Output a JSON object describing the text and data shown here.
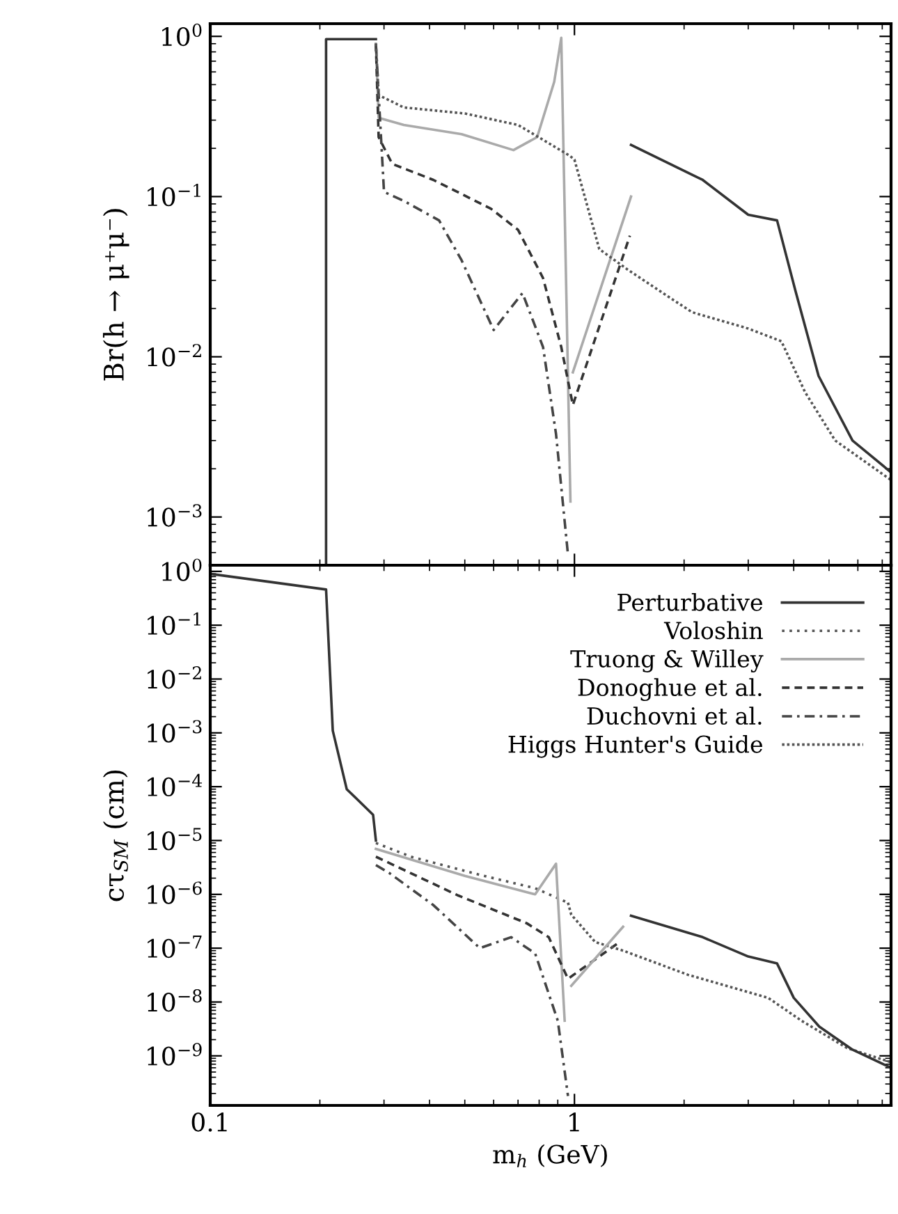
{
  "chart_data": [
    {
      "type": "line",
      "ylabel": "Br(h → μ⁺μ⁻)",
      "log": "xy",
      "grid": false,
      "tick_labels": "y",
      "xlim": [
        0.1,
        7.4
      ],
      "xticks": [
        0.1,
        1
      ],
      "ylim": [
        0.0005,
        1.2
      ],
      "yticks": [
        {
          "value": 1,
          "label": "10$^{0}$"
        },
        {
          "value": 0.1,
          "label": "10$^{−1}$"
        },
        {
          "value": 0.01,
          "label": "10$^{−2}$"
        },
        {
          "value": 0.001,
          "label": "10$^{−3}$"
        }
      ],
      "series": [
        {
          "color": "#333333",
          "line_style": "solid",
          "x": [
            0.208,
            0.208,
            0.285
          ],
          "values": [
            0.0005,
            0.96,
            0.96
          ]
        },
        {
          "color": "#333333",
          "line_style": "solid",
          "x": [
            1.43,
            2.25,
            3.0,
            3.6,
            4.04,
            4.68,
            5.8,
            7.4
          ],
          "values": [
            0.21,
            0.127,
            0.077,
            0.071,
            0.026,
            0.0076,
            0.003,
            0.0019
          ]
        },
        {
          "color": "#aaaaaa",
          "line_style": "solid",
          "x": [
            0.285,
            0.29,
            0.34,
            0.49,
            0.68,
            0.79,
            0.88,
            0.92,
            0.975
          ],
          "values": [
            0.9,
            0.31,
            0.28,
            0.245,
            0.195,
            0.235,
            0.52,
            0.98,
            0.00125
          ]
        },
        {
          "color": "#aaaaaa",
          "line_style": "solid",
          "x": [
            0.99,
            1.43
          ],
          "values": [
            0.008,
            0.1
          ]
        },
        {
          "color": "#333333",
          "line_style": "dashed",
          "x": [
            0.285,
            0.29,
            0.316,
            0.41,
            0.59,
            0.7,
            0.82,
            0.92,
            0.99,
            1.42
          ],
          "values": [
            0.9,
            0.235,
            0.16,
            0.127,
            0.084,
            0.062,
            0.031,
            0.0115,
            0.005,
            0.057
          ]
        },
        {
          "color": "#444444",
          "line_style": "dashdot",
          "x": [
            0.285,
            0.3,
            0.34,
            0.425,
            0.49,
            0.6,
            0.72,
            0.82,
            0.89,
            0.96
          ],
          "values": [
            0.9,
            0.107,
            0.094,
            0.071,
            0.04,
            0.0147,
            0.025,
            0.0115,
            0.0033,
            0.00058
          ]
        },
        {
          "color": "#555555",
          "line_style": "densely dotted",
          "x": [
            0.285,
            0.29,
            0.34,
            0.5,
            0.7,
            0.97,
            1.0,
            1.17,
            1.4,
            2.1,
            3.0,
            3.7,
            4.3,
            5.2,
            7.4
          ],
          "values": [
            0.9,
            0.43,
            0.36,
            0.33,
            0.28,
            0.18,
            0.17,
            0.047,
            0.035,
            0.019,
            0.015,
            0.0125,
            0.006,
            0.003,
            0.0017
          ]
        }
      ]
    },
    {
      "type": "line",
      "xlabel": "m$_{h}$ (GeV)",
      "ylabel": "cτ$_{SM}$ (cm)",
      "log": "xy",
      "grid": false,
      "legend": "top right",
      "xlim": [
        0.1,
        7.4
      ],
      "xticks": [
        0.1,
        1
      ],
      "ylim": [
        1.2e-10,
        1.3
      ],
      "yticks": [
        {
          "value": 1,
          "label": "10$^{0}$"
        },
        {
          "value": 0.1,
          "label": "10$^{−1}$"
        },
        {
          "value": 0.01,
          "label": "10$^{−2}$"
        },
        {
          "value": 0.001,
          "label": "10$^{−3}$"
        },
        {
          "value": 0.0001,
          "label": "10$^{−4}$"
        },
        {
          "value": 1e-05,
          "label": "10$^{−5}$"
        },
        {
          "value": 1e-06,
          "label": "10$^{−6}$"
        },
        {
          "value": 1e-07,
          "label": "10$^{−7}$"
        },
        {
          "value": 1e-08,
          "label": "10$^{−8}$"
        },
        {
          "value": 1e-09,
          "label": "10$^{−9}$"
        }
      ],
      "series": [
        {
          "name": "Perturbative",
          "color": "#333333",
          "line_style": "solid",
          "x": [
            0.1,
            0.208,
            0.217,
            0.237,
            0.28,
            0.285
          ],
          "values": [
            0.9,
            0.46,
            0.0011,
            9e-05,
            3e-05,
            1e-05
          ]
        },
        {
          "name": "Voloshin",
          "color": "#555555",
          "line_style": "dotted",
          "x": [
            0.285,
            0.356,
            0.55,
            0.78,
            0.96
          ],
          "values": [
            9e-06,
            5e-06,
            2.3e-06,
            1.3e-06,
            7e-07
          ]
        },
        {
          "name": "Truong & Willey",
          "color": "#aaaaaa",
          "line_style": "solid",
          "x": [
            0.285,
            0.5,
            0.78,
            0.89,
            0.94
          ],
          "values": [
            7e-06,
            2.2e-06,
            1e-06,
            3.7e-06,
            4.5e-09
          ]
        },
        {
          "name": "Donoghue et al.",
          "color": "#333333",
          "line_style": "dashed",
          "x": [
            0.285,
            0.48,
            0.74,
            0.85,
            0.96,
            1.33
          ],
          "values": [
            5e-06,
            9.5e-07,
            2.9e-07,
            1.6e-07,
            2.7e-08,
            1.3e-07
          ]
        },
        {
          "name": "Duchovni et al.",
          "color": "#444444",
          "line_style": "dashdot",
          "x": [
            0.285,
            0.31,
            0.41,
            0.55,
            0.67,
            0.78,
            0.9,
            0.96
          ],
          "values": [
            3.5e-06,
            2.5e-06,
            6.3e-07,
            1e-07,
            1.6e-07,
            8e-08,
            4.5e-09,
            1.8e-10
          ]
        },
        {
          "name": "Higgs Hunter's Guide",
          "color": "#555555",
          "line_style": "densely dotted",
          "x": [
            0.96,
            0.98,
            1.14,
            1.36,
            2.05,
            3.4,
            4.2,
            5.6,
            7.4
          ],
          "values": [
            7e-07,
            4.2e-07,
            1.3e-07,
            9e-08,
            3.2e-08,
            1.2e-08,
            4.5e-09,
            1.4e-09,
            7.6e-10
          ]
        },
        {
          "color": "#333333",
          "line_style": "solid",
          "x": [
            1.43,
            2.25,
            3.0,
            3.6,
            4.0,
            4.7,
            5.8,
            7.4
          ],
          "values": [
            4e-07,
            1.6e-07,
            7e-08,
            5.2e-08,
            1.2e-08,
            3.5e-09,
            1.3e-09,
            6e-10
          ]
        },
        {
          "color": "#aaaaaa",
          "line_style": "solid",
          "x": [
            0.98,
            1.36
          ],
          "values": [
            2e-08,
            2.5e-07
          ]
        }
      ]
    }
  ]
}
